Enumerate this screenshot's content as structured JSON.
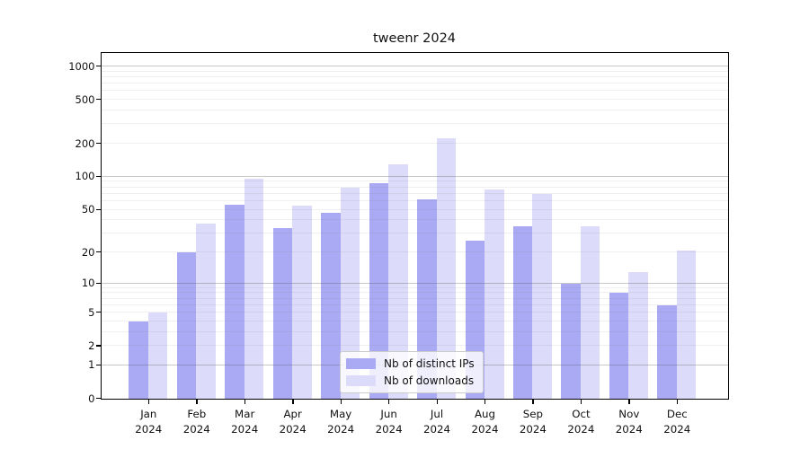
{
  "title": "tweenr 2024",
  "legend": {
    "items": [
      {
        "label": "Nb of distinct IPs",
        "color": "#a9a9f4"
      },
      {
        "label": "Nb of downloads",
        "color": "#dcdcfa"
      }
    ]
  },
  "chart_data": {
    "type": "bar",
    "title": "tweenr 2024",
    "categories": [
      "Jan 2024",
      "Feb 2024",
      "Mar 2024",
      "Apr 2024",
      "May 2024",
      "Jun 2024",
      "Jul 2024",
      "Aug 2024",
      "Sep 2024",
      "Oct 2024",
      "Nov 2024",
      "Dec 2024"
    ],
    "series": [
      {
        "name": "Nb of distinct IPs",
        "color": "#a9a9f4",
        "values": [
          4,
          20,
          55,
          34,
          47,
          88,
          62,
          26,
          35,
          10,
          8,
          6
        ]
      },
      {
        "name": "Nb of downloads",
        "color": "#dcdcfa",
        "values": [
          5,
          37,
          97,
          54,
          80,
          130,
          225,
          77,
          70,
          35,
          13,
          21
        ]
      }
    ],
    "xlabel": "",
    "ylabel": "",
    "yscale": "log1p",
    "ylim": [
      0,
      1300
    ],
    "yticks": [
      0,
      1,
      2,
      5,
      10,
      20,
      50,
      100,
      200,
      500,
      1000
    ],
    "grid": {
      "major": [
        1,
        10,
        100,
        1000
      ],
      "minor": [
        2,
        3,
        4,
        5,
        6,
        7,
        8,
        9,
        20,
        30,
        40,
        50,
        60,
        70,
        80,
        90,
        200,
        300,
        400,
        500,
        600,
        700,
        800,
        900
      ]
    },
    "legend_position": "lower center",
    "bar_orientation": "vertical"
  }
}
